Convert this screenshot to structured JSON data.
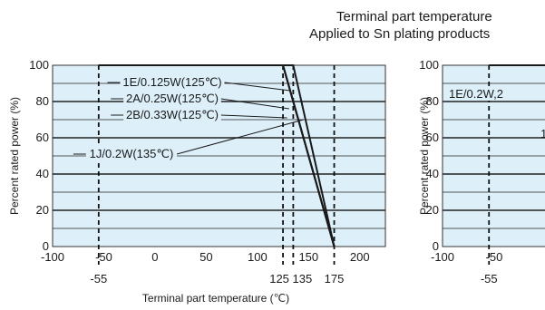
{
  "header": {
    "line1": "Terminal part temperature",
    "line2": "Applied to Sn plating products"
  },
  "chart_data": [
    {
      "type": "line",
      "title": "",
      "xlabel": "Terminal part temperature (℃)",
      "ylabel": "Percent rated power (%)",
      "xlim": [
        -100,
        225
      ],
      "ylim": [
        0,
        100
      ],
      "x_ticks": [
        "-100",
        "-50",
        "0",
        "50",
        "100",
        "150",
        "200"
      ],
      "y_ticks": [
        "0",
        "20",
        "40",
        "60",
        "80",
        "100"
      ],
      "marked_x": [
        "-55",
        "125",
        "135",
        "175"
      ],
      "grid": true,
      "background": "#ddf0fa",
      "series_color": "#1a1a1a",
      "series": [
        {
          "name": "1E/0.125W(125℃)",
          "x": [
            -55,
            125,
            175
          ],
          "y": [
            100,
            100,
            0
          ]
        },
        {
          "name": "2A/0.25W(125℃)",
          "x": [
            -55,
            125,
            175
          ],
          "y": [
            100,
            100,
            0
          ]
        },
        {
          "name": "2B/0.33W(125℃)",
          "x": [
            -55,
            125,
            175
          ],
          "y": [
            100,
            100,
            0
          ]
        },
        {
          "name": "1J/0.2W(135℃)",
          "x": [
            -55,
            135,
            175
          ],
          "y": [
            100,
            100,
            0
          ]
        }
      ]
    },
    {
      "type": "line",
      "xlabel": "",
      "ylabel": "Percent rated power (%)",
      "xlim": [
        -100,
        225
      ],
      "ylim": [
        0,
        100
      ],
      "x_ticks": [
        "-100",
        "-50"
      ],
      "y_ticks": [
        "0",
        "20",
        "40",
        "60",
        "80",
        "100"
      ],
      "marked_x": [
        "-55"
      ],
      "grid": true,
      "background": "#ddf0fa",
      "series_color": "#1a1a1a",
      "series": [
        {
          "name": "1E/0.2W,2",
          "x": [
            -55,
            125
          ],
          "y": [
            100,
            100
          ]
        }
      ],
      "partial_labels": [
        "1"
      ]
    }
  ]
}
